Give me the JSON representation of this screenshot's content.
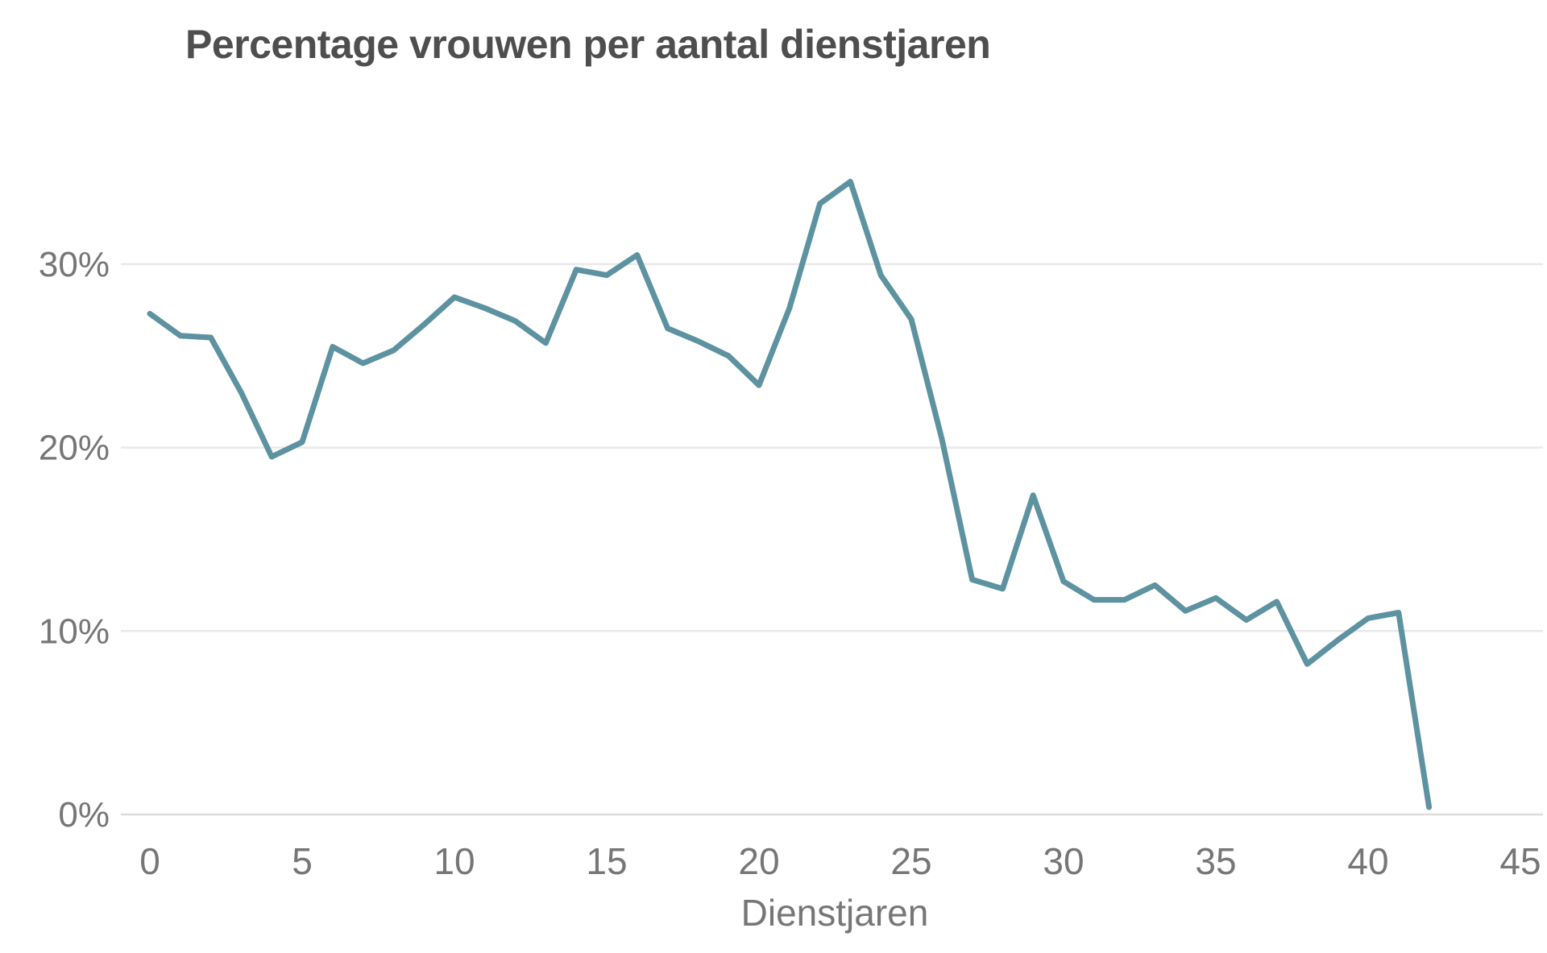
{
  "chart": {
    "title": "Percentage vrouwen per aantal dienstjaren",
    "x_axis_title": "Dienstjaren"
  },
  "chart_data": {
    "type": "line",
    "title": "Percentage vrouwen per aantal dienstjaren",
    "xlabel": "Dienstjaren",
    "ylabel": "",
    "x": [
      0,
      1,
      2,
      3,
      4,
      5,
      6,
      7,
      8,
      9,
      10,
      11,
      12,
      13,
      14,
      15,
      16,
      17,
      18,
      19,
      20,
      21,
      22,
      23,
      24,
      25,
      26,
      27,
      28,
      29,
      30,
      31,
      32,
      33,
      34,
      35,
      36,
      37,
      38,
      39,
      40,
      41,
      42
    ],
    "values": [
      27.3,
      26.1,
      26.0,
      23.0,
      19.5,
      20.3,
      25.5,
      24.6,
      25.3,
      26.7,
      28.2,
      27.6,
      26.9,
      25.7,
      29.7,
      29.4,
      30.5,
      26.5,
      25.8,
      25.0,
      23.4,
      27.6,
      33.3,
      34.5,
      29.4,
      27.0,
      20.5,
      12.8,
      12.3,
      17.4,
      12.7,
      11.7,
      11.7,
      12.5,
      11.1,
      11.8,
      10.6,
      11.6,
      8.2,
      9.5,
      10.7,
      11.0,
      0.4
    ],
    "x_ticks": [
      0,
      5,
      10,
      15,
      20,
      25,
      30,
      35,
      40,
      45
    ],
    "x_tick_labels": [
      "0",
      "5",
      "10",
      "15",
      "20",
      "25",
      "30",
      "35",
      "40",
      "45"
    ],
    "y_ticks": [
      0,
      10,
      20,
      30
    ],
    "y_tick_labels": [
      "0%",
      "10%",
      "20%",
      "30%"
    ],
    "xlim": [
      0,
      45
    ],
    "ylim": [
      0,
      37
    ],
    "grid": "horizontal-only",
    "legend": "none",
    "series_name": "Percentage vrouwen",
    "colors": {
      "line": "#5d92a1",
      "grid": "#e9e9e9",
      "axis": "#dcdcdc",
      "title": "#4e4e4e",
      "ticks": "#767676"
    }
  }
}
